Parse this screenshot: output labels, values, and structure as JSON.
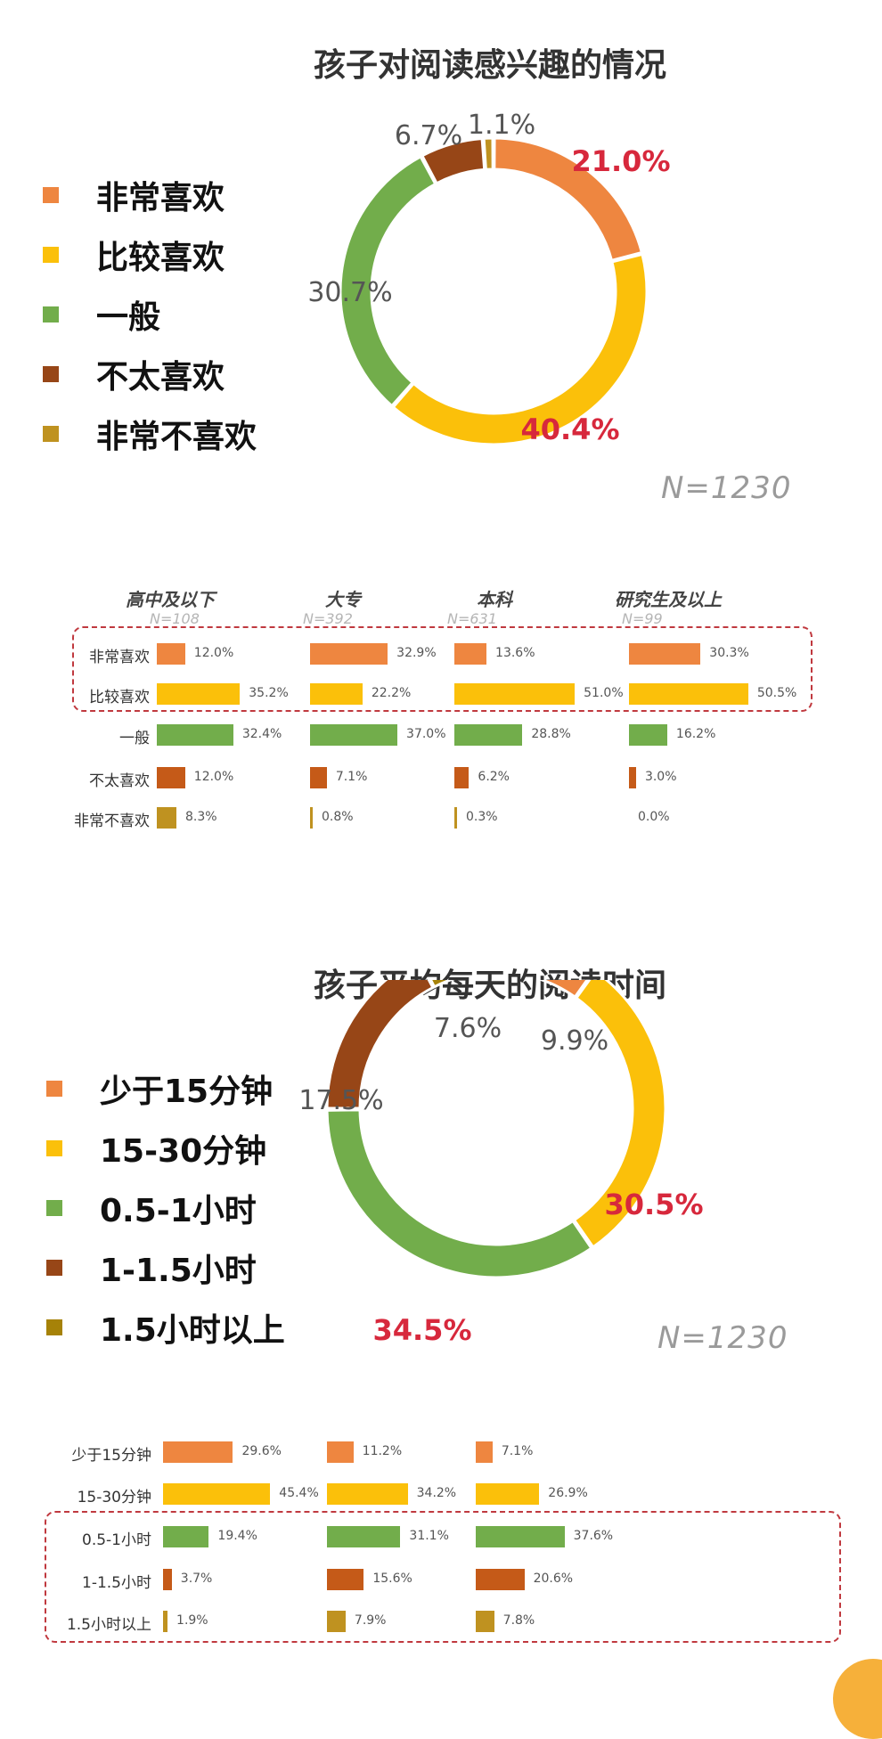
{
  "chart_data": [
    {
      "type": "pie",
      "title": "孩子对阅读感兴趣的情况",
      "note": "N=1230",
      "series": [
        {
          "name": "非常喜欢",
          "value": 21.0,
          "label": "21.0%",
          "color": "#ee8640"
        },
        {
          "name": "比较喜欢",
          "value": 40.4,
          "label": "40.4%",
          "color": "#fbc00a"
        },
        {
          "name": "一般",
          "value": 30.7,
          "label": "30.7%",
          "color": "#72ad4b"
        },
        {
          "name": "不太喜欢",
          "value": 6.7,
          "label": "6.7%",
          "color": "#974617"
        },
        {
          "name": "非常不喜欢",
          "value": 1.1,
          "label": "1.1%",
          "color": "#bf9220"
        }
      ]
    },
    {
      "type": "bar",
      "groups": [
        {
          "name": "高中及以下",
          "n": "N=108"
        },
        {
          "name": "大专",
          "n": "N=392"
        },
        {
          "name": "本科",
          "n": "N=631"
        },
        {
          "name": "研究生及以上",
          "n": "N=99"
        }
      ],
      "categories": [
        "非常喜欢",
        "比较喜欢",
        "一般",
        "不太喜欢",
        "非常不喜欢"
      ],
      "colors": [
        "#ee8640",
        "#fbc00a",
        "#72ad4b",
        "#c55a18",
        "#bf9220"
      ],
      "values": [
        [
          12.0,
          35.2,
          32.4,
          12.0,
          8.3
        ],
        [
          32.9,
          22.2,
          37.0,
          7.1,
          0.8
        ],
        [
          13.6,
          51.0,
          28.8,
          6.2,
          0.3
        ],
        [
          30.3,
          50.5,
          16.2,
          3.0,
          0.0
        ]
      ],
      "labels": [
        [
          "12.0%",
          "35.2%",
          "32.4%",
          "12.0%",
          "8.3%"
        ],
        [
          "32.9%",
          "22.2%",
          "37.0%",
          "7.1%",
          "0.8%"
        ],
        [
          "13.6%",
          "51.0%",
          "28.8%",
          "6.2%",
          "0.3%"
        ],
        [
          "30.3%",
          "50.5%",
          "16.2%",
          "3.0%",
          "0.0%"
        ]
      ],
      "highlight_rows": [
        0,
        1
      ]
    },
    {
      "type": "pie",
      "title": "孩子平均每天的阅读时间",
      "note": "N=1230",
      "series": [
        {
          "name": "少于15分钟",
          "value": 9.9,
          "label": "9.9%",
          "color": "#ee8640"
        },
        {
          "name": "15-30分钟",
          "value": 30.5,
          "label": "30.5%",
          "color": "#fbc00a"
        },
        {
          "name": "0.5-1小时",
          "value": 34.5,
          "label": "34.5%",
          "color": "#72ad4b"
        },
        {
          "name": "1-1.5小时",
          "value": 17.5,
          "label": "17.5%",
          "color": "#974617"
        },
        {
          "name": "1.5小时以上",
          "value": 7.6,
          "label": "7.6%",
          "color": "#a68208"
        }
      ]
    },
    {
      "type": "bar",
      "categories": [
        "少于15分钟",
        "15-30分钟",
        "0.5-1小时",
        "1-1.5小时",
        "1.5小时以上"
      ],
      "colors": [
        "#ee8640",
        "#fbc00a",
        "#72ad4b",
        "#c55a18",
        "#bf9220"
      ],
      "values": [
        [
          29.6,
          45.4,
          19.4,
          3.7,
          1.9
        ],
        [
          11.2,
          34.2,
          31.1,
          15.6,
          7.9
        ],
        [
          7.1,
          26.9,
          37.6,
          20.6,
          7.8
        ]
      ],
      "labels": [
        [
          "29.6%",
          "45.4%",
          "19.4%",
          "3.7%",
          "1.9%"
        ],
        [
          "11.2%",
          "34.2%",
          "31.1%",
          "15.6%",
          "7.9%"
        ],
        [
          "7.1%",
          "26.9%",
          "37.6%",
          "20.6%",
          "7.8%"
        ]
      ],
      "highlight_rows": [
        2,
        3,
        4
      ]
    }
  ]
}
